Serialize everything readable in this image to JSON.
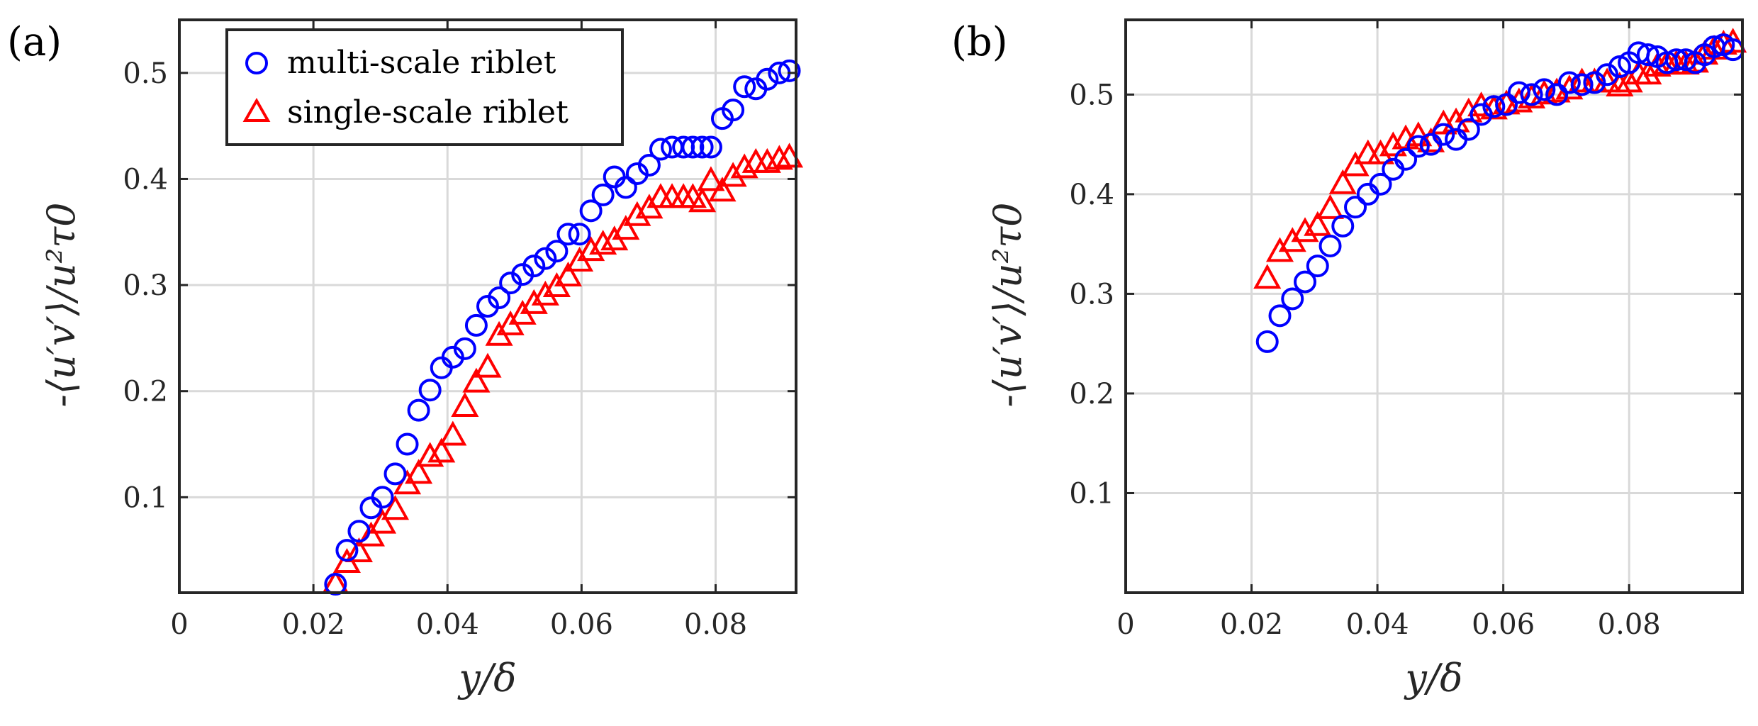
{
  "chart_data": [
    {
      "type": "scatter",
      "panel_label": "(a)",
      "xlabel": "y/δ",
      "ylabel": "-⟨u′v′⟩/u²τ0",
      "xlim": [
        0,
        0.092
      ],
      "ylim": [
        0.01,
        0.55
      ],
      "grid": true,
      "xticks": [
        0,
        0.02,
        0.04,
        0.06,
        0.08
      ],
      "xtick_labels": [
        "0",
        "0.02",
        "0.04",
        "0.06",
        "0.08"
      ],
      "yticks": [
        0.1,
        0.2,
        0.3,
        0.4,
        0.5
      ],
      "ytick_labels": [
        "0.1",
        "0.2",
        "0.3",
        "0.4",
        "0.5"
      ],
      "legend": {
        "position": "top-left",
        "entries": [
          "multi-scale riblet",
          "single-scale riblet"
        ]
      },
      "series": [
        {
          "name": "multi-scale riblet",
          "marker": "circle",
          "color": "#0000ff",
          "x": [
            0.0233,
            0.025,
            0.0268,
            0.0286,
            0.0303,
            0.0322,
            0.034,
            0.0357,
            0.0374,
            0.0391,
            0.0408,
            0.0426,
            0.0443,
            0.046,
            0.0477,
            0.0494,
            0.0512,
            0.0529,
            0.0546,
            0.0563,
            0.058,
            0.0597,
            0.0614,
            0.0632,
            0.0649,
            0.0666,
            0.0683,
            0.0701,
            0.0718,
            0.0735,
            0.0752,
            0.0766,
            0.078,
            0.0793,
            0.081,
            0.0826,
            0.0843,
            0.086,
            0.0877,
            0.0895,
            0.091
          ],
          "y": [
            0.018,
            0.05,
            0.068,
            0.09,
            0.1,
            0.122,
            0.15,
            0.182,
            0.201,
            0.222,
            0.232,
            0.24,
            0.262,
            0.28,
            0.288,
            0.302,
            0.31,
            0.318,
            0.325,
            0.332,
            0.348,
            0.348,
            0.37,
            0.385,
            0.402,
            0.392,
            0.405,
            0.413,
            0.428,
            0.43,
            0.43,
            0.43,
            0.43,
            0.43,
            0.457,
            0.465,
            0.487,
            0.485,
            0.494,
            0.5,
            0.502
          ]
        },
        {
          "name": "single-scale riblet",
          "marker": "triangle",
          "color": "#ff0000",
          "x": [
            0.0233,
            0.025,
            0.0268,
            0.0286,
            0.0303,
            0.0322,
            0.034,
            0.0357,
            0.0374,
            0.0391,
            0.0408,
            0.0426,
            0.0443,
            0.046,
            0.0477,
            0.0494,
            0.0512,
            0.0529,
            0.0546,
            0.0563,
            0.058,
            0.0597,
            0.0614,
            0.0632,
            0.0649,
            0.0666,
            0.0683,
            0.0701,
            0.0718,
            0.0735,
            0.0752,
            0.0766,
            0.078,
            0.0793,
            0.081,
            0.0826,
            0.0843,
            0.086,
            0.0877,
            0.0895,
            0.091
          ],
          "y": [
            0.018,
            0.038,
            0.048,
            0.063,
            0.075,
            0.088,
            0.112,
            0.122,
            0.138,
            0.142,
            0.158,
            0.185,
            0.208,
            0.222,
            0.252,
            0.262,
            0.272,
            0.282,
            0.29,
            0.298,
            0.308,
            0.322,
            0.332,
            0.338,
            0.342,
            0.352,
            0.365,
            0.372,
            0.382,
            0.382,
            0.382,
            0.382,
            0.378,
            0.398,
            0.388,
            0.402,
            0.41,
            0.415,
            0.415,
            0.418,
            0.42
          ]
        }
      ]
    },
    {
      "type": "scatter",
      "panel_label": "(b)",
      "xlabel": "y/δ",
      "ylabel": "-⟨u′v′⟩/u²τ0",
      "xlim": [
        0,
        0.098
      ],
      "ylim": [
        0.0,
        0.575
      ],
      "grid": true,
      "xticks": [
        0,
        0.02,
        0.04,
        0.06,
        0.08
      ],
      "xtick_labels": [
        "0",
        "0.02",
        "0.04",
        "0.06",
        "0.08"
      ],
      "yticks": [
        0.1,
        0.2,
        0.3,
        0.4,
        0.5
      ],
      "ytick_labels": [
        "0.1",
        "0.2",
        "0.3",
        "0.4",
        "0.5"
      ],
      "series": [
        {
          "name": "multi-scale riblet",
          "marker": "circle",
          "color": "#0000ff",
          "x": [
            0.0225,
            0.0245,
            0.0265,
            0.0285,
            0.0305,
            0.0325,
            0.0345,
            0.0365,
            0.0385,
            0.0405,
            0.0425,
            0.0445,
            0.0465,
            0.0485,
            0.0505,
            0.0525,
            0.0545,
            0.0565,
            0.0585,
            0.0605,
            0.0625,
            0.0645,
            0.0665,
            0.0685,
            0.0705,
            0.0725,
            0.0745,
            0.0765,
            0.0785,
            0.08,
            0.0815,
            0.083,
            0.0845,
            0.086,
            0.0875,
            0.089,
            0.0905,
            0.092,
            0.0935,
            0.095,
            0.0965
          ],
          "y": [
            0.252,
            0.278,
            0.295,
            0.312,
            0.328,
            0.348,
            0.368,
            0.387,
            0.4,
            0.41,
            0.425,
            0.435,
            0.448,
            0.45,
            0.46,
            0.455,
            0.465,
            0.48,
            0.488,
            0.49,
            0.502,
            0.5,
            0.505,
            0.5,
            0.512,
            0.51,
            0.512,
            0.52,
            0.528,
            0.532,
            0.542,
            0.54,
            0.538,
            0.532,
            0.535,
            0.535,
            0.532,
            0.54,
            0.548,
            0.55,
            0.545
          ]
        },
        {
          "name": "single-scale riblet",
          "marker": "triangle",
          "color": "#ff0000",
          "x": [
            0.0225,
            0.0245,
            0.0265,
            0.0285,
            0.0305,
            0.0325,
            0.0345,
            0.0365,
            0.0385,
            0.0405,
            0.0425,
            0.0445,
            0.0465,
            0.0485,
            0.0505,
            0.0525,
            0.0545,
            0.0565,
            0.0585,
            0.0605,
            0.0625,
            0.0645,
            0.0665,
            0.0685,
            0.0705,
            0.0725,
            0.0745,
            0.0765,
            0.0785,
            0.08,
            0.0815,
            0.083,
            0.0845,
            0.086,
            0.0875,
            0.089,
            0.0905,
            0.092,
            0.0935,
            0.095,
            0.0965
          ],
          "y": [
            0.315,
            0.342,
            0.352,
            0.362,
            0.368,
            0.385,
            0.41,
            0.428,
            0.44,
            0.44,
            0.448,
            0.455,
            0.458,
            0.452,
            0.47,
            0.472,
            0.482,
            0.488,
            0.485,
            0.49,
            0.492,
            0.496,
            0.5,
            0.502,
            0.505,
            0.512,
            0.512,
            0.512,
            0.508,
            0.512,
            0.52,
            0.52,
            0.528,
            0.53,
            0.53,
            0.53,
            0.532,
            0.54,
            0.545,
            0.55,
            0.552
          ]
        }
      ]
    }
  ]
}
